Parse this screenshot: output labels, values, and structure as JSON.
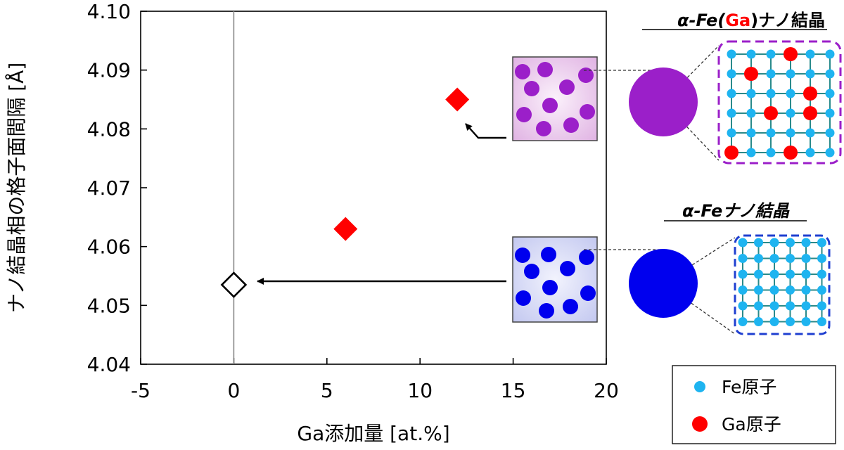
{
  "chart_data": {
    "type": "scatter",
    "xlabel": "Ga添加量 [at.%]",
    "ylabel": "ナノ結晶相の格子面間隔 [Å]",
    "xlim": [
      -5,
      20
    ],
    "ylim": [
      4.04,
      4.1
    ],
    "xticks": [
      "-5",
      "0",
      "5",
      "10",
      "15",
      "20"
    ],
    "yticks": [
      "4.04",
      "4.05",
      "4.06",
      "4.07",
      "4.08",
      "4.09",
      "4.10"
    ],
    "grid": false,
    "vertical_reference_line_x": 0,
    "series": [
      {
        "marker": "diamond-open",
        "color": "#000000",
        "points": [
          {
            "x": 0,
            "y": 4.0535
          }
        ]
      },
      {
        "marker": "diamond-filled",
        "color": "#ff0000",
        "points": [
          {
            "x": 6,
            "y": 4.063
          },
          {
            "x": 12,
            "y": 4.085
          }
        ]
      }
    ]
  },
  "insets": {
    "ga_title": {
      "prefix": "α-Fe(",
      "highlight": "Ga",
      "suffix": ")ナノ結晶",
      "highlight_color": "#ff0000"
    },
    "fe_title": "α-Feナノ結晶",
    "ga_colors": {
      "particle": "#9b1fc9",
      "box": "#f0d2ee",
      "frame": "#9b1fc9"
    },
    "fe_colors": {
      "particle": "#0000ee",
      "box": "#d9dcf7",
      "frame": "#1f3fd0"
    }
  },
  "legend": {
    "items": [
      {
        "label": "Fe原子",
        "color": "#1eb4f0"
      },
      {
        "label": "Ga原子",
        "color": "#ff0000"
      }
    ]
  }
}
